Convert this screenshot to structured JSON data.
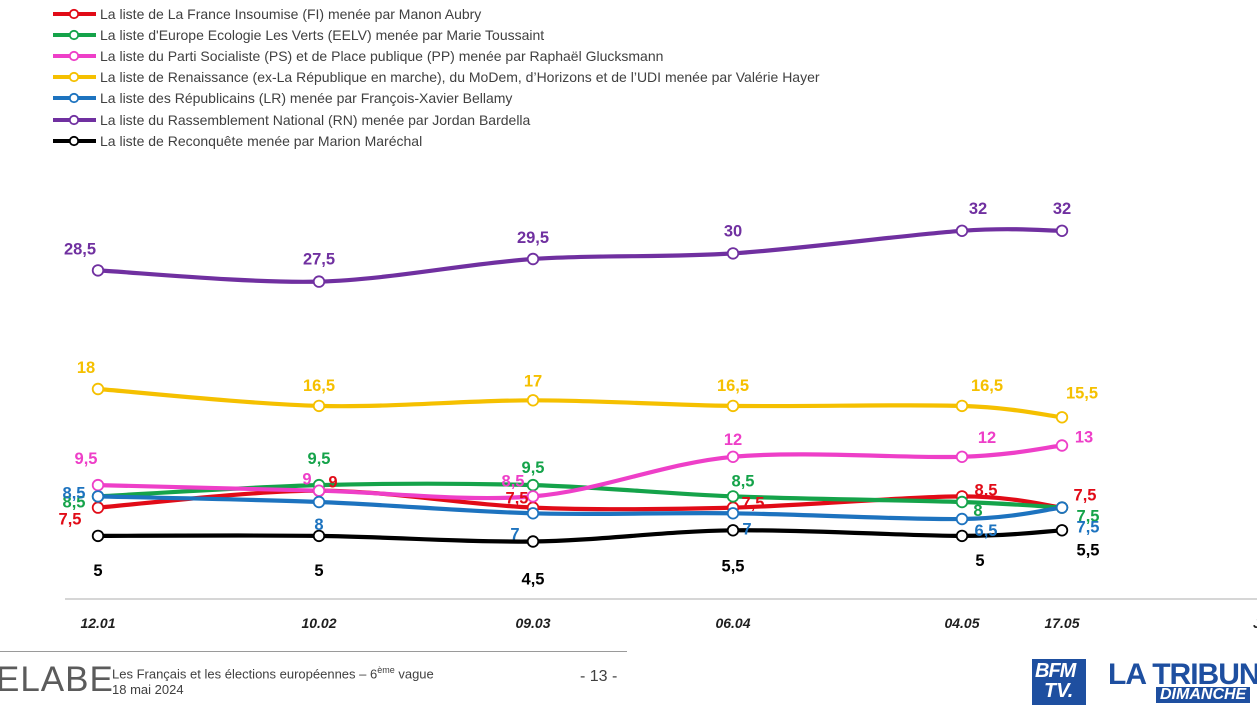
{
  "chart_data": {
    "type": "line",
    "title": "",
    "xlabel": "",
    "ylabel": "",
    "categories": [
      "12.01",
      "10.02",
      "09.03",
      "06.04",
      "04.05",
      "17.05"
    ],
    "extra_tick": "J",
    "series": [
      {
        "key": "fi",
        "name": "La liste de La France Insoumise (FI) menée par Manon Aubry",
        "color": "#e10b17",
        "values": [
          7.5,
          9,
          7.5,
          7.5,
          8.5,
          7.5
        ],
        "labels": [
          "7,5",
          "9",
          "7,5",
          "7,5",
          "8,5",
          "7,5"
        ]
      },
      {
        "key": "eelv",
        "name": "La liste d'Europe Ecologie Les Verts (EELV) menée par Marie Toussaint",
        "color": "#15a34a",
        "values": [
          8.5,
          9.5,
          9.5,
          8.5,
          8,
          7.5
        ],
        "labels": [
          "8,5",
          "9,5",
          "9,5",
          "8,5",
          "8",
          "7,5"
        ]
      },
      {
        "key": "ps",
        "name": "La liste du Parti Socialiste (PS) et de Place publique (PP) menée par Raphaël Glucksmann",
        "color": "#ee3fc8",
        "values": [
          9.5,
          9,
          8.5,
          12,
          12,
          13
        ],
        "labels": [
          "9,5",
          "9",
          "8,5",
          "12",
          "12",
          "13"
        ]
      },
      {
        "key": "ren",
        "name": "La liste de Renaissance (ex-La République en marche), du MoDem, d’Horizons et de l’UDI menée par Valérie Hayer",
        "color": "#f5c000",
        "values": [
          18,
          16.5,
          17,
          16.5,
          16.5,
          15.5
        ],
        "labels": [
          "18",
          "16,5",
          "17",
          "16,5",
          "16,5",
          "15,5"
        ]
      },
      {
        "key": "lr",
        "name": "La liste des Républicains (LR) menée par François-Xavier Bellamy",
        "color": "#1d73bf",
        "values": [
          8.5,
          8,
          7,
          7,
          6.5,
          7.5
        ],
        "labels": [
          "8,5",
          "8",
          "7",
          "7",
          "6,5",
          "7,5"
        ]
      },
      {
        "key": "rn",
        "name": "La liste du Rassemblement National (RN) menée par Jordan Bardella",
        "color": "#7030a0",
        "values": [
          28.5,
          27.5,
          29.5,
          30,
          32,
          32
        ],
        "labels": [
          "28,5",
          "27,5",
          "29,5",
          "30",
          "32",
          "32"
        ]
      },
      {
        "key": "rec",
        "name": "La liste de Reconquête menée par Marion Maréchal",
        "color": "#000000",
        "values": [
          5,
          5,
          4.5,
          5.5,
          5,
          5.5
        ],
        "labels": [
          "5",
          "5",
          "4,5",
          "5,5",
          "5",
          "5,5"
        ]
      }
    ]
  },
  "footer": {
    "brand": "ELABE",
    "subtitle_main": "Les Français et les élections européennes – 6",
    "subtitle_sup": "ème",
    "subtitle_end": " vague",
    "date": "18 mai 2024",
    "page": "- 13 -",
    "logo_bfm_line1": "BFM",
    "logo_bfm_line2": "TV.",
    "logo_tribune_line1": "LA TRIBUNE",
    "logo_tribune_line2": "DIMANCHE"
  }
}
